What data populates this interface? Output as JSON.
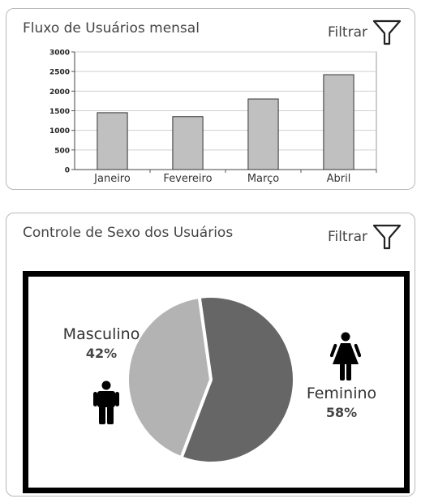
{
  "bar_card": {
    "title": "Fluxo de Usuários mensal",
    "filter_label": "Filtrar"
  },
  "pie_card": {
    "title": "Controle de Sexo dos Usuários",
    "filter_label": "Filtrar"
  },
  "icons": {
    "filter": "funnel-icon",
    "male": "male-person-icon",
    "female": "female-person-icon"
  },
  "colors": {
    "bar_fill": "#c0c0c0",
    "masculino": "#b3b3b3",
    "feminino": "#666666",
    "frame": "#000000"
  },
  "chart_data": [
    {
      "type": "bar",
      "title": "Fluxo de Usuários mensal",
      "categories": [
        "Janeiro",
        "Fevereiro",
        "Março",
        "Abril"
      ],
      "values": [
        1450,
        1350,
        1800,
        2420
      ],
      "xlabel": "",
      "ylabel": "",
      "ylim": [
        0,
        3000
      ],
      "yticks": [
        "0",
        "500",
        "1000",
        "1500",
        "2000",
        "2500",
        "3000"
      ],
      "grid": true
    },
    {
      "type": "pie",
      "title": "Controle de Sexo dos Usuários",
      "slices": [
        {
          "name": "Masculino",
          "value": 42,
          "label": "42%"
        },
        {
          "name": "Feminino",
          "value": 58,
          "label": "58%"
        }
      ]
    }
  ]
}
